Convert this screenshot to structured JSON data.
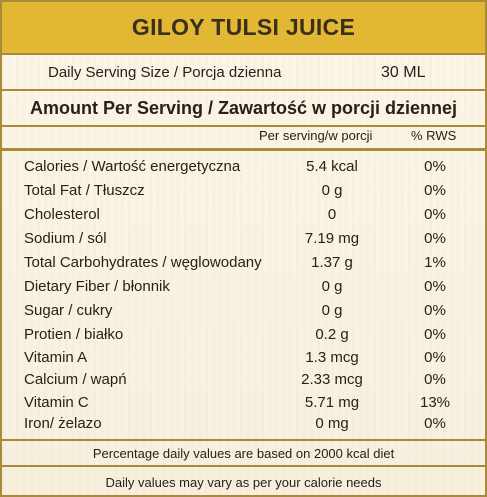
{
  "title": "GILOY TULSI JUICE",
  "serving": {
    "label": "Daily Serving Size / Porcja dzienna",
    "value": "30 ML"
  },
  "amount_heading": "Amount Per Serving / Zawartość w porcji dziennej",
  "columns": {
    "per_serving": "Per serving/w porcji",
    "rws": "% RWS"
  },
  "nutrients": [
    {
      "name": "Calories / Wartość energetyczna",
      "amount": "5.4 kcal",
      "rws": "0%"
    },
    {
      "name": "Total Fat / Tłuszcz",
      "amount": "0 g",
      "rws": "0%"
    },
    {
      "name": "Cholesterol",
      "amount": "0",
      "rws": "0%"
    },
    {
      "name": "Sodium / sól",
      "amount": "7.19 mg",
      "rws": "0%"
    },
    {
      "name": "Total Carbohydrates / węglowodany",
      "amount": "1.37 g",
      "rws": "1%"
    },
    {
      "name": "Dietary Fiber / błonnik",
      "amount": "0 g",
      "rws": "0%"
    },
    {
      "name": "Sugar / cukry",
      "amount": "0 g",
      "rws": "0%"
    },
    {
      "name": "Protien / białko",
      "amount": "0.2 g",
      "rws": "0%"
    },
    {
      "name": "Vitamin A",
      "amount": "1.3 mcg",
      "rws": "0%"
    },
    {
      "name": "Calcium / wapń",
      "amount": "2.33 mcg",
      "rws": "0%"
    },
    {
      "name": "Vitamin C",
      "amount": "5.71 mg",
      "rws": "13%"
    },
    {
      "name": "Iron/ żelazo",
      "amount": "0 mg",
      "rws": "0%"
    }
  ],
  "footer": {
    "note_1": "Percentage daily values are based on 2000 kcal diet",
    "note_2": "Daily values may vary as per your calorie needs"
  },
  "colors": {
    "title_bar": "#e1b733",
    "border": "#a88a38",
    "background": "#faf4e4"
  }
}
